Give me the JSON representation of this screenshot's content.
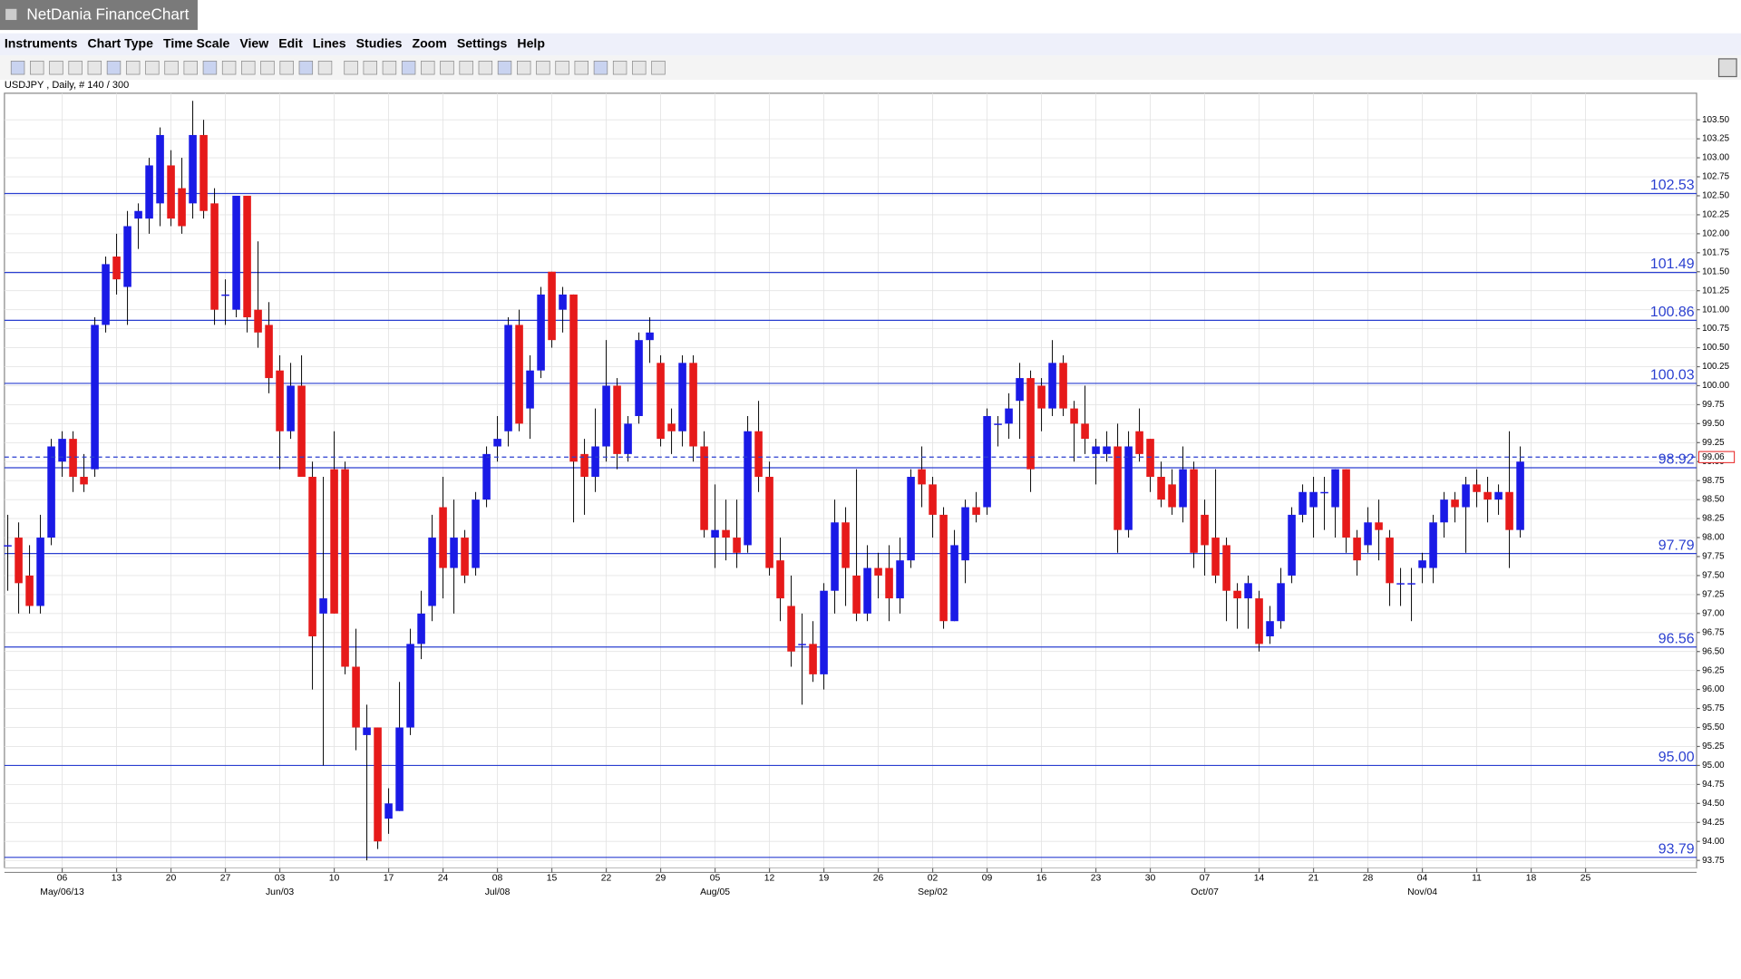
{
  "window_title": "NetDania FinanceChart",
  "menu": [
    "Instruments",
    "Chart Type",
    "Time Scale",
    "View",
    "Edit",
    "Lines",
    "Studies",
    "Zoom",
    "Settings",
    "Help"
  ],
  "chart_data": {
    "type": "candlestick",
    "title": "USDJPY , Daily, # 140 / 300",
    "up_color": "#1a1ae6",
    "down_color": "#e61a1a",
    "level_color": "#2a3fd0",
    "grid": true,
    "ylim": [
      93.65,
      103.85
    ],
    "yticks": [
      93.75,
      {
        "value": 94,
        "label": "94.00"
      },
      94.25,
      {
        "value": 94.5,
        "label": "94.50"
      },
      94.75,
      {
        "value": 95,
        "label": "95.00"
      },
      95.25,
      {
        "value": 95.5,
        "label": "95.50"
      },
      95.75,
      {
        "value": 96,
        "label": "96.00"
      },
      96.25,
      {
        "value": 96.5,
        "label": "96.50"
      },
      96.75,
      {
        "value": 97,
        "label": "97.00"
      },
      97.25,
      {
        "value": 97.5,
        "label": "97.50"
      },
      97.75,
      {
        "value": 98,
        "label": "98.00"
      },
      98.25,
      {
        "value": 98.5,
        "label": "98.50"
      },
      98.75,
      {
        "value": 99,
        "label": "99.00"
      },
      99.25,
      {
        "value": 99.5,
        "label": "99.50"
      },
      99.75,
      {
        "value": 100,
        "label": "100.00"
      },
      100.25,
      {
        "value": 100.5,
        "label": "100.50"
      },
      100.75,
      {
        "value": 101,
        "label": "101.00"
      },
      101.25,
      {
        "value": 101.5,
        "label": "101.50"
      },
      101.75,
      {
        "value": 102,
        "label": "102.00"
      },
      102.25,
      {
        "value": 102.5,
        "label": "102.50"
      },
      102.75,
      {
        "value": 103,
        "label": "103.00"
      },
      103.25,
      {
        "value": 103.5,
        "label": "103.50"
      }
    ],
    "xticks": [
      "06",
      "13",
      "20",
      "27",
      "03",
      "10",
      "17",
      "24",
      "08",
      "15",
      "22",
      "29",
      "05",
      "12",
      "19",
      "26",
      "02",
      "09",
      "16",
      "23",
      "30",
      "07",
      "14",
      "21",
      "28",
      "04",
      "11",
      "18",
      "25"
    ],
    "month_labels": [
      "May/06/13",
      "Jun/03",
      "Jul/08",
      "Aug/05",
      "Sep/02",
      "Oct/07",
      "Nov/04"
    ],
    "levels": [
      102.53,
      101.49,
      100.86,
      100.03,
      98.92,
      97.79,
      96.56,
      {
        "value": 95,
        "label": "95.00"
      },
      93.79
    ],
    "last_price": 99.06,
    "ohlc": [
      [
        97.9,
        98.3,
        97.3,
        97.9
      ],
      [
        98.0,
        98.2,
        97.0,
        97.4
      ],
      [
        97.5,
        97.9,
        97.0,
        97.1
      ],
      [
        97.1,
        98.3,
        97.0,
        98.0
      ],
      [
        98.0,
        99.3,
        97.9,
        99.2
      ],
      [
        99.0,
        99.4,
        98.8,
        99.3
      ],
      [
        99.3,
        99.4,
        98.6,
        98.8
      ],
      [
        98.8,
        99.1,
        98.6,
        98.7
      ],
      [
        98.9,
        100.9,
        98.8,
        100.8
      ],
      [
        100.8,
        101.7,
        100.7,
        101.6
      ],
      [
        101.7,
        102.0,
        101.2,
        101.4
      ],
      [
        101.3,
        102.3,
        100.8,
        102.1
      ],
      [
        102.2,
        102.4,
        101.8,
        102.3
      ],
      [
        102.2,
        103.0,
        102.0,
        102.9
      ],
      [
        102.4,
        103.4,
        102.1,
        103.3
      ],
      [
        102.9,
        103.1,
        102.1,
        102.2
      ],
      [
        102.6,
        103.0,
        102.0,
        102.1
      ],
      [
        102.4,
        103.75,
        102.2,
        103.3
      ],
      [
        103.3,
        103.5,
        102.2,
        102.3
      ],
      [
        102.4,
        102.6,
        100.8,
        101.0
      ],
      [
        101.2,
        101.4,
        100.8,
        101.2
      ],
      [
        101.0,
        102.5,
        100.9,
        102.5
      ],
      [
        102.5,
        102.5,
        100.7,
        100.9
      ],
      [
        101.0,
        101.9,
        100.5,
        100.7
      ],
      [
        100.8,
        101.1,
        99.9,
        100.1
      ],
      [
        100.2,
        100.4,
        98.9,
        99.4
      ],
      [
        99.4,
        100.3,
        99.3,
        100.0
      ],
      [
        100.0,
        100.4,
        98.8,
        98.8
      ],
      [
        98.8,
        99.0,
        96.0,
        96.7
      ],
      [
        97.0,
        98.8,
        95.0,
        97.2
      ],
      [
        98.9,
        99.4,
        97.0,
        97.0
      ],
      [
        98.9,
        99.0,
        96.2,
        96.3
      ],
      [
        96.3,
        96.8,
        95.2,
        95.5
      ],
      [
        95.4,
        95.8,
        93.75,
        95.5
      ],
      [
        95.5,
        95.5,
        93.9,
        94.0
      ],
      [
        94.3,
        94.7,
        94.1,
        94.5
      ],
      [
        94.4,
        96.1,
        94.4,
        95.5
      ],
      [
        95.5,
        96.8,
        95.4,
        96.6
      ],
      [
        96.6,
        97.3,
        96.4,
        97.0
      ],
      [
        97.1,
        98.3,
        96.9,
        98.0
      ],
      [
        98.4,
        98.8,
        97.2,
        97.6
      ],
      [
        97.6,
        98.5,
        97.0,
        98.0
      ],
      [
        98.0,
        98.1,
        97.4,
        97.5
      ],
      [
        97.6,
        98.6,
        97.5,
        98.5
      ],
      [
        98.5,
        99.2,
        98.4,
        99.1
      ],
      [
        99.2,
        99.6,
        99.0,
        99.3
      ],
      [
        99.4,
        100.9,
        99.2,
        100.8
      ],
      [
        100.8,
        101.0,
        99.4,
        99.5
      ],
      [
        99.7,
        100.4,
        99.3,
        100.2
      ],
      [
        100.2,
        101.3,
        100.1,
        101.2
      ],
      [
        101.5,
        101.5,
        100.5,
        100.6
      ],
      [
        101.0,
        101.3,
        100.7,
        101.2
      ],
      [
        101.2,
        101.2,
        98.2,
        99.0
      ],
      [
        99.1,
        99.3,
        98.3,
        98.8
      ],
      [
        98.8,
        99.7,
        98.6,
        99.2
      ],
      [
        99.2,
        100.6,
        99.0,
        100.0
      ],
      [
        100.0,
        100.1,
        98.9,
        99.1
      ],
      [
        99.1,
        99.6,
        99.0,
        99.5
      ],
      [
        99.6,
        100.7,
        99.5,
        100.6
      ],
      [
        100.6,
        100.9,
        100.3,
        100.7
      ],
      [
        100.3,
        100.4,
        99.2,
        99.3
      ],
      [
        99.5,
        99.7,
        99.1,
        99.4
      ],
      [
        99.4,
        100.4,
        99.2,
        100.3
      ],
      [
        100.3,
        100.4,
        99.0,
        99.2
      ],
      [
        99.2,
        99.4,
        98.0,
        98.1
      ],
      [
        98.0,
        98.7,
        97.6,
        98.1
      ],
      [
        98.1,
        98.5,
        97.7,
        98.0
      ],
      [
        98.0,
        98.5,
        97.6,
        97.8
      ],
      [
        97.9,
        99.6,
        97.8,
        99.4
      ],
      [
        99.4,
        99.8,
        98.6,
        98.8
      ],
      [
        98.8,
        99.0,
        97.5,
        97.6
      ],
      [
        97.7,
        98.0,
        96.9,
        97.2
      ],
      [
        97.1,
        97.5,
        96.3,
        96.5
      ],
      [
        96.6,
        97.0,
        95.8,
        96.6
      ],
      [
        96.6,
        96.9,
        96.1,
        96.2
      ],
      [
        96.2,
        97.4,
        96.0,
        97.3
      ],
      [
        97.3,
        98.5,
        97.0,
        98.2
      ],
      [
        98.2,
        98.4,
        97.1,
        97.6
      ],
      [
        97.5,
        98.9,
        96.9,
        97.0
      ],
      [
        97.0,
        97.9,
        96.9,
        97.6
      ],
      [
        97.6,
        97.8,
        97.2,
        97.5
      ],
      [
        97.6,
        97.9,
        96.9,
        97.2
      ],
      [
        97.2,
        98.0,
        97.0,
        97.7
      ],
      [
        97.7,
        98.9,
        97.6,
        98.8
      ],
      [
        98.9,
        99.2,
        98.4,
        98.7
      ],
      [
        98.7,
        98.8,
        98.0,
        98.3
      ],
      [
        98.3,
        98.4,
        96.8,
        96.9
      ],
      [
        96.9,
        98.1,
        96.9,
        97.9
      ],
      [
        97.7,
        98.5,
        97.4,
        98.4
      ],
      [
        98.4,
        98.6,
        98.2,
        98.3
      ],
      [
        98.4,
        99.7,
        98.3,
        99.6
      ],
      [
        99.5,
        99.6,
        99.2,
        99.5
      ],
      [
        99.5,
        99.9,
        99.3,
        99.7
      ],
      [
        99.8,
        100.3,
        99.3,
        100.1
      ],
      [
        100.1,
        100.2,
        98.6,
        98.9
      ],
      [
        100.0,
        100.1,
        99.4,
        99.7
      ],
      [
        99.7,
        100.6,
        99.6,
        100.3
      ],
      [
        100.3,
        100.4,
        99.6,
        99.7
      ],
      [
        99.7,
        99.8,
        99.0,
        99.5
      ],
      [
        99.5,
        100.0,
        99.1,
        99.3
      ],
      [
        99.1,
        99.3,
        98.7,
        99.2
      ],
      [
        99.1,
        99.4,
        99.0,
        99.2
      ],
      [
        99.2,
        99.5,
        97.8,
        98.1
      ],
      [
        98.1,
        99.4,
        98.0,
        99.2
      ],
      [
        99.4,
        99.7,
        99.0,
        99.1
      ],
      [
        99.3,
        99.3,
        98.6,
        98.8
      ],
      [
        98.8,
        99.0,
        98.4,
        98.5
      ],
      [
        98.7,
        98.9,
        98.3,
        98.4
      ],
      [
        98.4,
        99.2,
        98.2,
        98.9
      ],
      [
        98.9,
        99.0,
        97.6,
        97.8
      ],
      [
        98.3,
        98.5,
        97.5,
        97.9
      ],
      [
        98.0,
        98.9,
        97.4,
        97.5
      ],
      [
        97.9,
        98.0,
        96.9,
        97.3
      ],
      [
        97.3,
        97.4,
        96.8,
        97.2
      ],
      [
        97.2,
        97.5,
        96.8,
        97.4
      ],
      [
        97.2,
        97.3,
        96.5,
        96.6
      ],
      [
        96.7,
        97.1,
        96.6,
        96.9
      ],
      [
        96.9,
        97.6,
        96.8,
        97.4
      ],
      [
        97.5,
        98.4,
        97.4,
        98.3
      ],
      [
        98.3,
        98.7,
        98.2,
        98.6
      ],
      [
        98.4,
        98.8,
        98.0,
        98.6
      ],
      [
        98.6,
        98.8,
        98.1,
        98.6
      ],
      [
        98.4,
        98.9,
        98.0,
        98.9
      ],
      [
        98.9,
        98.9,
        97.8,
        98.0
      ],
      [
        98.0,
        98.1,
        97.5,
        97.7
      ],
      [
        97.9,
        98.4,
        97.8,
        98.2
      ],
      [
        98.2,
        98.5,
        97.7,
        98.1
      ],
      [
        98.0,
        98.1,
        97.1,
        97.4
      ],
      [
        97.4,
        97.6,
        97.1,
        97.4
      ],
      [
        97.4,
        97.6,
        96.9,
        97.4
      ],
      [
        97.6,
        97.8,
        97.4,
        97.7
      ],
      [
        97.6,
        98.3,
        97.4,
        98.2
      ],
      [
        98.2,
        98.6,
        98.0,
        98.5
      ],
      [
        98.5,
        98.6,
        98.2,
        98.4
      ],
      [
        98.4,
        98.8,
        97.8,
        98.7
      ],
      [
        98.7,
        98.9,
        98.4,
        98.6
      ],
      [
        98.6,
        98.8,
        98.2,
        98.5
      ],
      [
        98.5,
        98.7,
        98.3,
        98.6
      ],
      [
        98.6,
        99.4,
        97.6,
        98.1
      ],
      [
        98.1,
        99.2,
        98.0,
        99.0
      ]
    ]
  }
}
